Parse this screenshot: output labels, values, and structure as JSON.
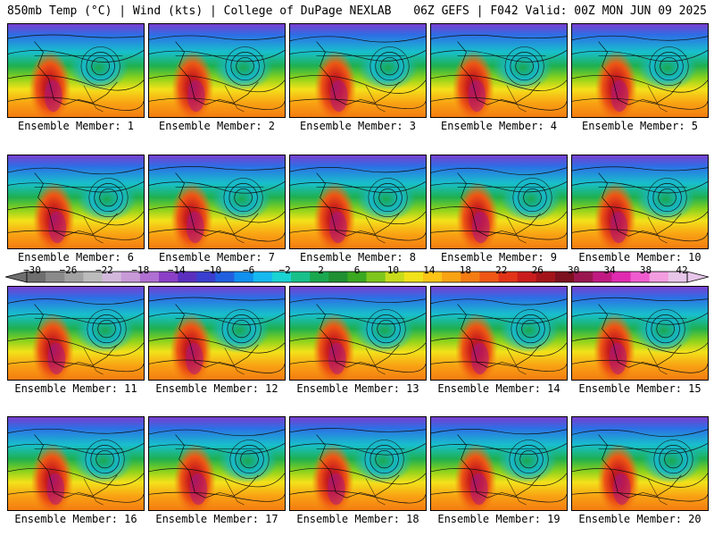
{
  "header": {
    "title_left": "850mb Temp (°C) | Wind (kts) | College of DuPage NEXLAB",
    "title_right": "06Z GEFS | F042 Valid: 00Z MON JUN 09 2025"
  },
  "member_label_prefix": "Ensemble Member: ",
  "members": [
    {
      "label": "Ensemble Member: 1"
    },
    {
      "label": "Ensemble Member: 2"
    },
    {
      "label": "Ensemble Member: 3"
    },
    {
      "label": "Ensemble Member: 4"
    },
    {
      "label": "Ensemble Member: 5"
    },
    {
      "label": "Ensemble Member: 6"
    },
    {
      "label": "Ensemble Member: 7"
    },
    {
      "label": "Ensemble Member: 8"
    },
    {
      "label": "Ensemble Member: 9"
    },
    {
      "label": "Ensemble Member: 10"
    },
    {
      "label": "Ensemble Member: 11"
    },
    {
      "label": "Ensemble Member: 12"
    },
    {
      "label": "Ensemble Member: 13"
    },
    {
      "label": "Ensemble Member: 14"
    },
    {
      "label": "Ensemble Member: 15"
    },
    {
      "label": "Ensemble Member: 16"
    },
    {
      "label": "Ensemble Member: 17"
    },
    {
      "label": "Ensemble Member: 18"
    },
    {
      "label": "Ensemble Member: 19"
    },
    {
      "label": "Ensemble Member: 20"
    }
  ],
  "colorbar": {
    "tick_labels": [
      "-30",
      "-26",
      "-22",
      "-18",
      "-14",
      "-10",
      "-6",
      "-2",
      "2",
      "6",
      "10",
      "14",
      "18",
      "22",
      "26",
      "30",
      "34",
      "38",
      "42"
    ],
    "colors": [
      "#6e6e6e",
      "#8a8a8a",
      "#a2a2a2",
      "#bcbcbc",
      "#d3b9dc",
      "#c89ad8",
      "#b06fd2",
      "#8b3fc7",
      "#5a2fbf",
      "#3a3fcf",
      "#2060e0",
      "#1090ef",
      "#16b8f0",
      "#1ad3d3",
      "#18c08a",
      "#1aa84f",
      "#1e9032",
      "#3aa820",
      "#7ec61c",
      "#c8dc1c",
      "#f2e21a",
      "#fcc416",
      "#f9a213",
      "#f47c12",
      "#ee5714",
      "#e23418",
      "#c91c1c",
      "#a3141a",
      "#7d0f1f",
      "#9b1650",
      "#c01a82",
      "#e02ab0",
      "#f05cd0",
      "#f49ce0",
      "#e8c6ea"
    ]
  }
}
